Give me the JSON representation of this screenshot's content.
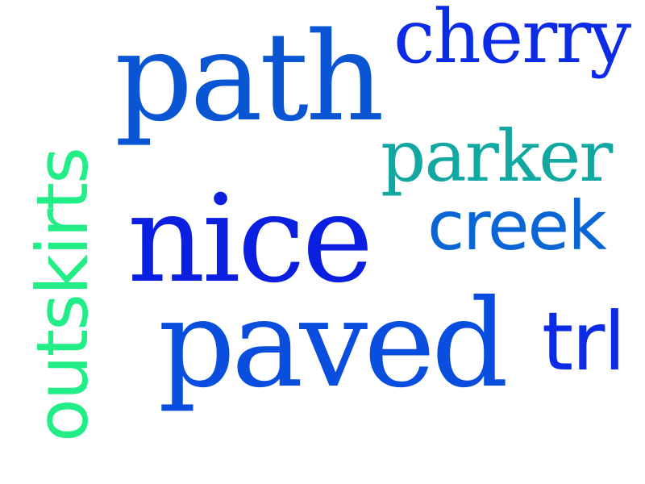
{
  "word_cloud": {
    "words": [
      {
        "id": "path",
        "text": "path",
        "color": "#0a55d4"
      },
      {
        "id": "cherry",
        "text": "cherry",
        "color": "#0b2be6"
      },
      {
        "id": "parker",
        "text": "parker",
        "color": "#10a8a0"
      },
      {
        "id": "creek",
        "text": "creek",
        "color": "#0a66d4"
      },
      {
        "id": "nice",
        "text": "nice",
        "color": "#0a1fe0"
      },
      {
        "id": "paved",
        "text": "paved",
        "color": "#0a4ee0"
      },
      {
        "id": "trl",
        "text": "trl",
        "color": "#0b2be6"
      },
      {
        "id": "outskirts",
        "text": "outskirts",
        "color": "#22ee88"
      }
    ]
  }
}
